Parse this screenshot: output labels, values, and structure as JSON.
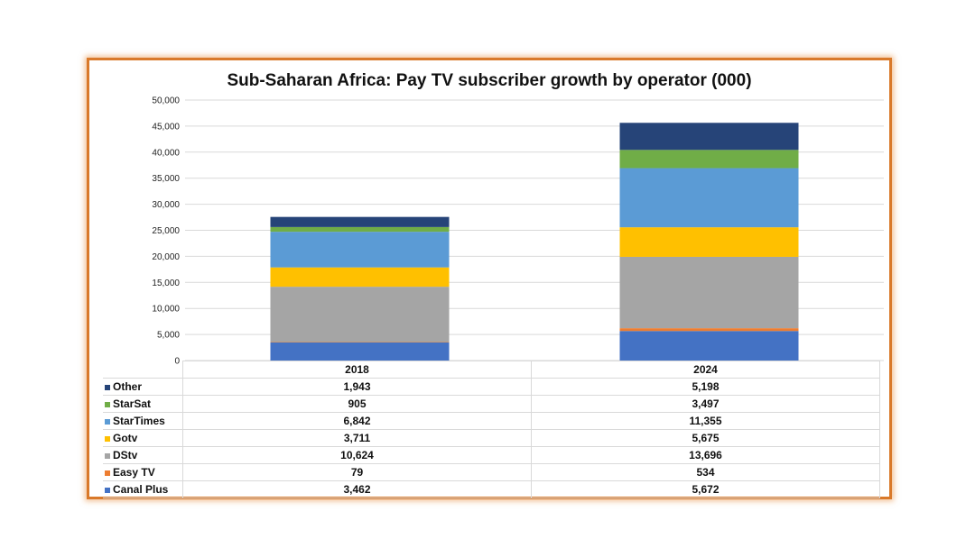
{
  "chart_data": {
    "type": "bar",
    "stacked": true,
    "title": "Sub-Saharan Africa: Pay TV subscriber growth by operator (000)",
    "categories": [
      "2018",
      "2024"
    ],
    "ylim": [
      0,
      50000
    ],
    "yticks": [
      "0",
      "5,000",
      "10,000",
      "15,000",
      "20,000",
      "25,000",
      "30,000",
      "35,000",
      "40,000",
      "45,000",
      "50,000"
    ],
    "grid": true,
    "legend": "data-table",
    "series": [
      {
        "name": "Canal Plus",
        "color": "#4472c4",
        "values": [
          3462,
          5672
        ],
        "labels": [
          "3,462",
          "5,672"
        ]
      },
      {
        "name": "Easy TV",
        "color": "#ed7d31",
        "values": [
          79,
          534
        ],
        "labels": [
          "79",
          "534"
        ]
      },
      {
        "name": "DStv",
        "color": "#a5a5a5",
        "values": [
          10624,
          13696
        ],
        "labels": [
          "10,624",
          "13,696"
        ]
      },
      {
        "name": "Gotv",
        "color": "#ffc000",
        "values": [
          3711,
          5675
        ],
        "labels": [
          "3,711",
          "5,675"
        ]
      },
      {
        "name": "StarTimes",
        "color": "#5b9bd5",
        "values": [
          6842,
          11355
        ],
        "labels": [
          "6,842",
          "11,355"
        ]
      },
      {
        "name": "StarSat",
        "color": "#70ad47",
        "values": [
          905,
          3497
        ],
        "labels": [
          "905",
          "3,497"
        ]
      },
      {
        "name": "Other",
        "color": "#264478",
        "values": [
          1943,
          5198
        ],
        "labels": [
          "1,943",
          "5,198"
        ]
      }
    ]
  }
}
